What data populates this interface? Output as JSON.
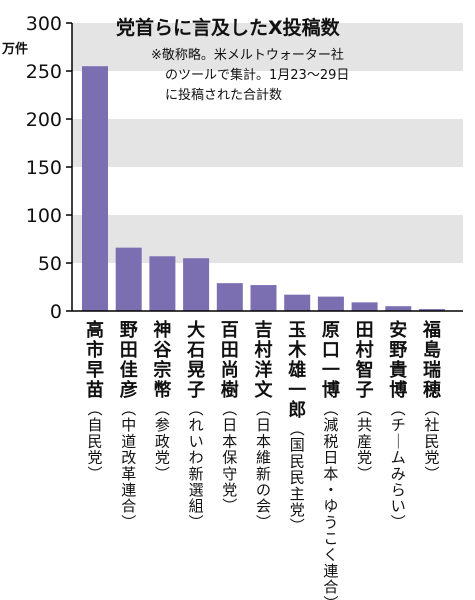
{
  "chart_data": {
    "type": "bar",
    "title": "党首らに言及したX投稿数",
    "ylabel": "万件",
    "note": [
      "※敬称略。米メルトウォーター社",
      "のツールで集計。1月23～29日",
      "に投稿された合計数"
    ],
    "ylim": [
      0,
      300
    ],
    "yticks": [
      0,
      50,
      100,
      150,
      200,
      250,
      300
    ],
    "grid": "alternating horizontal bands",
    "categories": [
      {
        "name": "高市早苗",
        "party": "（自民党）"
      },
      {
        "name": "野田佳彦",
        "party": "（中道改革連合）"
      },
      {
        "name": "神谷宗幣",
        "party": "（参政党）"
      },
      {
        "name": "大石晃子",
        "party": "（れいわ新選組）"
      },
      {
        "name": "百田尚樹",
        "party": "（日本保守党）"
      },
      {
        "name": "吉村洋文",
        "party": "（日本維新の会）"
      },
      {
        "name": "玉木雄一郎",
        "party": "（国民民主党）"
      },
      {
        "name": "原口一博",
        "party": "（減税日本・ゆうこく連合）"
      },
      {
        "name": "田村智子",
        "party": "（共産党）"
      },
      {
        "name": "安野貴博",
        "party": "（チームみらい）"
      },
      {
        "name": "福島瑞穂",
        "party": "（社民党）"
      }
    ],
    "values": [
      255,
      66,
      57,
      55,
      29,
      27,
      17,
      15,
      9,
      5,
      2
    ],
    "colors": {
      "bar": "#7b6fb1",
      "band": "#e4e4e4",
      "axis": "#000000"
    }
  }
}
